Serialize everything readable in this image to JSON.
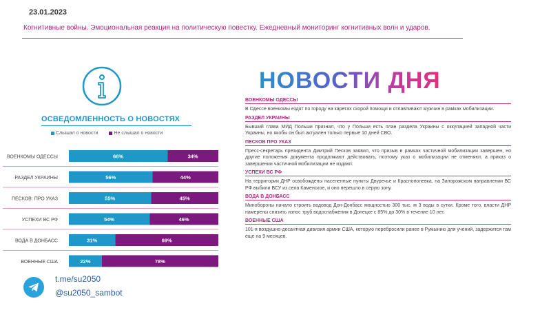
{
  "header": {
    "date": "23.01.2023",
    "subtitle": "Когнитивные войны. Эмоциональная реакция на политическую повестку. Ежедневный мониторинг когнитивных волн и ударов."
  },
  "colors": {
    "heard": "#1f97c9",
    "not_heard": "#7b1a7e",
    "accent": "#c8388b"
  },
  "icons": {
    "info": "info-icon",
    "telegram": "telegram-icon"
  },
  "chart_data": {
    "type": "bar",
    "stacked": true,
    "orientation": "horizontal",
    "title": "ОСВЕДОМЛЕННОСТЬ О НОВОСТЯХ",
    "xlim": [
      0,
      100
    ],
    "legend_position": "top",
    "categories": [
      "ВОЕНКОМЫ ОДЕССЫ",
      "РАЗДЕЛ УКРАИНЫ",
      "ПЕСКОВ: ПРО УКАЗ",
      "УСПЕХИ ВС РФ",
      "ВОДА В ДОНБАСС",
      "ВОЕННЫЕ США"
    ],
    "series": [
      {
        "name": "Слышал о новости",
        "values": [
          66,
          56,
          55,
          54,
          31,
          22
        ],
        "color": "#1f97c9"
      },
      {
        "name": "Не слышал о новости",
        "values": [
          34,
          44,
          45,
          46,
          69,
          78
        ],
        "color": "#7b1a7e"
      }
    ]
  },
  "news": {
    "heading": "НОВОСТИ ДНЯ",
    "items": [
      {
        "title": "ВОЕНКОМЫ ОДЕССЫ",
        "text": "В Одессе военкомы ездят по городу на каретах скорой помощи и отлавливают мужчин в рамках мобилизации."
      },
      {
        "title": "РАЗДЕЛ УКРАИНЫ",
        "text": "Бывший глава МИД Польши признал, что у Польши есть план раздела Украины с оккупацией западной части Украины, но якобы он был актуален только первые 10 дней СВО."
      },
      {
        "title": "ПЕСКОВ ПРО УКАЗ",
        "text": "Пресс-секретарь президента Дмитрий Песков заявил, что призыв в рамках частичной мобилизации завершен, но другие положения документа продолжают действовать, поэтому указ о мобилизации не отменяют, а приказ о завершении частичной мобилизации не издают."
      },
      {
        "title": "УСПЕХИ ВС РФ",
        "text": "На территории ДНР освобождены населенные пункты Двуречье и Краснополевка, на Запорожском направлении ВС РФ выбили ВСУ из села Каменское, и оно перешло в серую зону."
      },
      {
        "title": "ВОДА В ДОНБАСС",
        "text": "Минобороны начало строить водовод Дон-Донбасс мощностью 300 тыс. м 3 воды в сутки. Кроме того, власти ДНР намерены снизить износ труб водоснабжения в Донецке с 85% до 30% в течение 10 лет."
      },
      {
        "title": "ВОЕННЫЕ США",
        "text": "101-я воздушно-десантная дивизия армии США, которую перебросили ранее в Румынию для учений, задержится там еще на 9 месяцев."
      }
    ]
  },
  "telegram": {
    "link": "t.me/su2050",
    "bot": "@su2050_sambot"
  }
}
